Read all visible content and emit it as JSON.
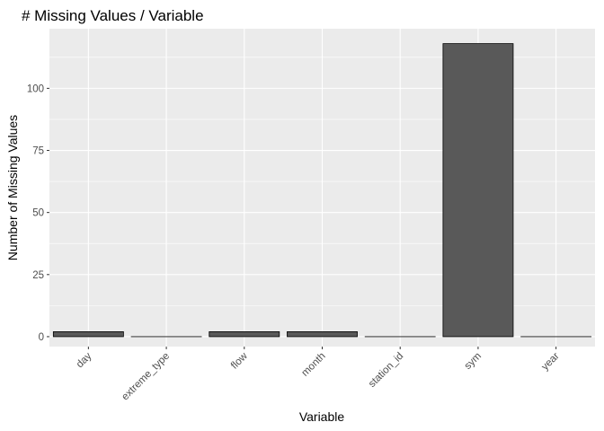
{
  "chart_data": {
    "type": "bar",
    "title": "# Missing Values / Variable",
    "xlabel": "Variable",
    "ylabel": "Number of Missing Values",
    "categories": [
      "day",
      "extreme_type",
      "flow",
      "month",
      "station_id",
      "sym",
      "year"
    ],
    "values": [
      2,
      0,
      2,
      2,
      0,
      118,
      0
    ],
    "ylim": [
      -4,
      124
    ],
    "yticks": [
      0,
      25,
      50,
      75,
      100
    ],
    "grid": true,
    "colors": {
      "panel": "#ebebeb",
      "grid_major": "#ffffff",
      "bar_fill": "#595959",
      "bar_stroke": "#000000",
      "tick": "#333333",
      "tick_label": "#4d4d4d"
    }
  }
}
